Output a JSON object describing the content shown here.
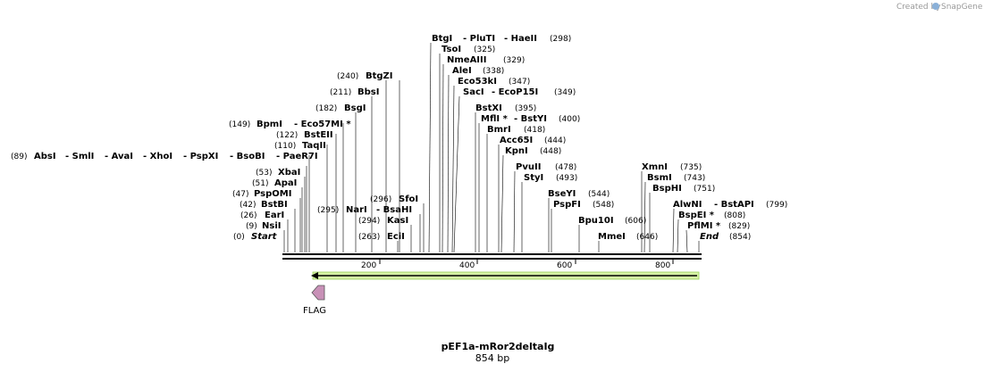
{
  "credit": {
    "created_by": "Created by",
    "brand": "SnapGene"
  },
  "map": {
    "title": "pEF1a-mRor2deltaIg",
    "length_label": "854 bp"
  },
  "ruler": {
    "ticks": [
      "200",
      "400",
      "600",
      "800"
    ]
  },
  "features": [
    {
      "name": "FLAG",
      "type": "tag",
      "strand": "reverse"
    }
  ],
  "sites": [
    {
      "line": "(0)",
      "parts": [
        "Start"
      ],
      "italic": true
    },
    {
      "line": "(9)",
      "parts": [
        "NsiI"
      ]
    },
    {
      "line": "(26)",
      "parts": [
        "EarI"
      ]
    },
    {
      "line": "(42)",
      "parts": [
        "BstBI"
      ]
    },
    {
      "line": "(47)",
      "parts": [
        "PspOMI"
      ]
    },
    {
      "line": "(51)",
      "parts": [
        "ApaI"
      ]
    },
    {
      "line": "(53)",
      "parts": [
        "XbaI"
      ]
    },
    {
      "line": "(89)",
      "parts": [
        "AbsI",
        "- SmlI",
        "- AvaI",
        "- XhoI",
        "- PspXI",
        "- BsoBI",
        "- PaeR7I"
      ]
    },
    {
      "line": "(110)",
      "parts": [
        "TaqII"
      ]
    },
    {
      "line": "(122)",
      "parts": [
        "BstEII"
      ]
    },
    {
      "line": "(149)",
      "parts": [
        "BpmI",
        "- Eco57MI *"
      ]
    },
    {
      "line": "(182)",
      "parts": [
        "BsgI"
      ]
    },
    {
      "line": "(211)",
      "parts": [
        "BbsI"
      ]
    },
    {
      "line": "(240)",
      "parts": [
        "BtgZI"
      ]
    },
    {
      "line": "(263)",
      "parts": [
        "EciI"
      ]
    },
    {
      "line": "(294)",
      "parts": [
        "KasI"
      ]
    },
    {
      "line": "(295)",
      "parts": [
        "NarI",
        "- BsaHI"
      ]
    },
    {
      "line": "(296)",
      "parts": [
        "SfoI"
      ]
    },
    {
      "line": "(298)",
      "parts": [
        "BtgI",
        "- PluTI",
        "- HaeII"
      ]
    },
    {
      "line": "(325)",
      "parts": [
        "TsoI"
      ]
    },
    {
      "line": "(329)",
      "parts": [
        "NmeAIII"
      ]
    },
    {
      "line": "(338)",
      "parts": [
        "AleI"
      ]
    },
    {
      "line": "(347)",
      "parts": [
        "Eco53kI"
      ]
    },
    {
      "line": "(349)",
      "parts": [
        "SacI",
        "- EcoP15I"
      ]
    },
    {
      "line": "(395)",
      "parts": [
        "BstXI"
      ]
    },
    {
      "line": "(400)",
      "parts": [
        "MflI *",
        "- BstYI"
      ]
    },
    {
      "line": "(418)",
      "parts": [
        "BmrI"
      ]
    },
    {
      "line": "(444)",
      "parts": [
        "Acc65I"
      ]
    },
    {
      "line": "(448)",
      "parts": [
        "KpnI"
      ]
    },
    {
      "line": "(478)",
      "parts": [
        "PvuII"
      ]
    },
    {
      "line": "(493)",
      "parts": [
        "StyI"
      ]
    },
    {
      "line": "(544)",
      "parts": [
        "BseYI"
      ]
    },
    {
      "line": "(548)",
      "parts": [
        "PspFI"
      ]
    },
    {
      "line": "(606)",
      "parts": [
        "Bpu10I"
      ]
    },
    {
      "line": "(646)",
      "parts": [
        "MmeI"
      ]
    },
    {
      "line": "(735)",
      "parts": [
        "XmnI"
      ]
    },
    {
      "line": "(743)",
      "parts": [
        "BsmI"
      ]
    },
    {
      "line": "(751)",
      "parts": [
        "BspHI"
      ]
    },
    {
      "line": "(799)",
      "parts": [
        "AlwNI",
        "- BstAPI"
      ]
    },
    {
      "line": "(808)",
      "parts": [
        "BspEI *"
      ]
    },
    {
      "line": "(829)",
      "parts": [
        "PflMI *"
      ]
    },
    {
      "line": "(854)",
      "parts": [
        "End"
      ],
      "italic": true
    }
  ]
}
